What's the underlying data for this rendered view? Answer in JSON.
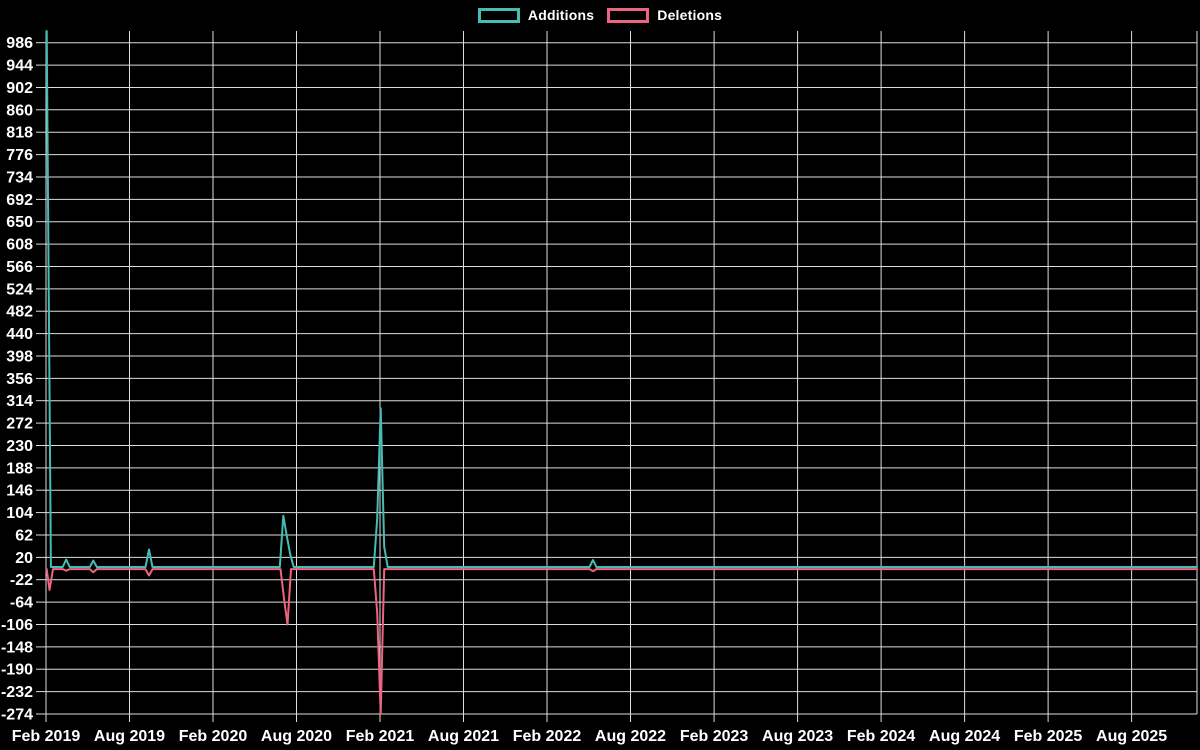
{
  "style": {
    "background": "#000000",
    "grid_color": "#dedede",
    "text_color": "#ffffff",
    "additions_color": "#45bcb4",
    "deletions_color": "#ee6480"
  },
  "legend": {
    "items": [
      {
        "label": "Additions",
        "color": "#45bcb4"
      },
      {
        "label": "Deletions",
        "color": "#ee6480"
      }
    ]
  },
  "chart_data": {
    "type": "line",
    "legend_position": "top",
    "grid": true,
    "x_unit": "months_since_feb_2019",
    "x_axis": {
      "domain_months": [
        0,
        82.7
      ],
      "ticks": [
        {
          "label": "Feb 2019",
          "m": 0
        },
        {
          "label": "Aug 2019",
          "m": 6
        },
        {
          "label": "Feb 2020",
          "m": 12
        },
        {
          "label": "Aug 2020",
          "m": 18
        },
        {
          "label": "Feb 2021",
          "m": 24
        },
        {
          "label": "Aug 2021",
          "m": 30
        },
        {
          "label": "Feb 2022",
          "m": 36
        },
        {
          "label": "Aug 2022",
          "m": 42
        },
        {
          "label": "Feb 2023",
          "m": 48
        },
        {
          "label": "Aug 2023",
          "m": 54
        },
        {
          "label": "Feb 2024",
          "m": 60
        },
        {
          "label": "Aug 2024",
          "m": 66
        },
        {
          "label": "Feb 2025",
          "m": 72
        },
        {
          "label": "Aug 2025",
          "m": 78
        }
      ]
    },
    "y_axis": {
      "domain": [
        -274,
        1008
      ],
      "ticks": [
        986,
        944,
        902,
        860,
        818,
        776,
        734,
        692,
        650,
        608,
        566,
        524,
        482,
        440,
        398,
        356,
        314,
        272,
        230,
        188,
        146,
        104,
        62,
        20,
        -22,
        -64,
        -106,
        -148,
        -190,
        -232,
        -274
      ]
    },
    "series": [
      {
        "name": "Additions",
        "color": "#45bcb4",
        "points": [
          [
            0.05,
            1008
          ],
          [
            0.35,
            2
          ],
          [
            1.2,
            2
          ],
          [
            1.45,
            16
          ],
          [
            1.7,
            2
          ],
          [
            3.15,
            2
          ],
          [
            3.4,
            14
          ],
          [
            3.65,
            2
          ],
          [
            7.15,
            2
          ],
          [
            7.4,
            35
          ],
          [
            7.65,
            2
          ],
          [
            16.8,
            2
          ],
          [
            17.05,
            98
          ],
          [
            17.3,
            60
          ],
          [
            17.55,
            25
          ],
          [
            17.8,
            2
          ],
          [
            23.55,
            2
          ],
          [
            23.8,
            93
          ],
          [
            24.05,
            300
          ],
          [
            24.3,
            40
          ],
          [
            24.55,
            2
          ],
          [
            39.05,
            2
          ],
          [
            39.3,
            15
          ],
          [
            39.55,
            2
          ],
          [
            82.7,
            2
          ]
        ]
      },
      {
        "name": "Deletions",
        "color": "#ee6480",
        "points": [
          [
            0.05,
            -2
          ],
          [
            0.25,
            -41
          ],
          [
            0.5,
            -2
          ],
          [
            1.2,
            -2
          ],
          [
            1.45,
            -5
          ],
          [
            1.7,
            -2
          ],
          [
            3.15,
            -2
          ],
          [
            3.4,
            -8
          ],
          [
            3.65,
            -2
          ],
          [
            7.15,
            -2
          ],
          [
            7.4,
            -14
          ],
          [
            7.65,
            -2
          ],
          [
            16.85,
            -2
          ],
          [
            17.1,
            -57
          ],
          [
            17.35,
            -106
          ],
          [
            17.6,
            -2
          ],
          [
            23.55,
            -2
          ],
          [
            23.8,
            -84
          ],
          [
            24.05,
            -274
          ],
          [
            24.3,
            -2
          ],
          [
            39.05,
            -2
          ],
          [
            39.3,
            -6
          ],
          [
            39.55,
            -2
          ],
          [
            82.7,
            -2
          ]
        ]
      }
    ]
  }
}
